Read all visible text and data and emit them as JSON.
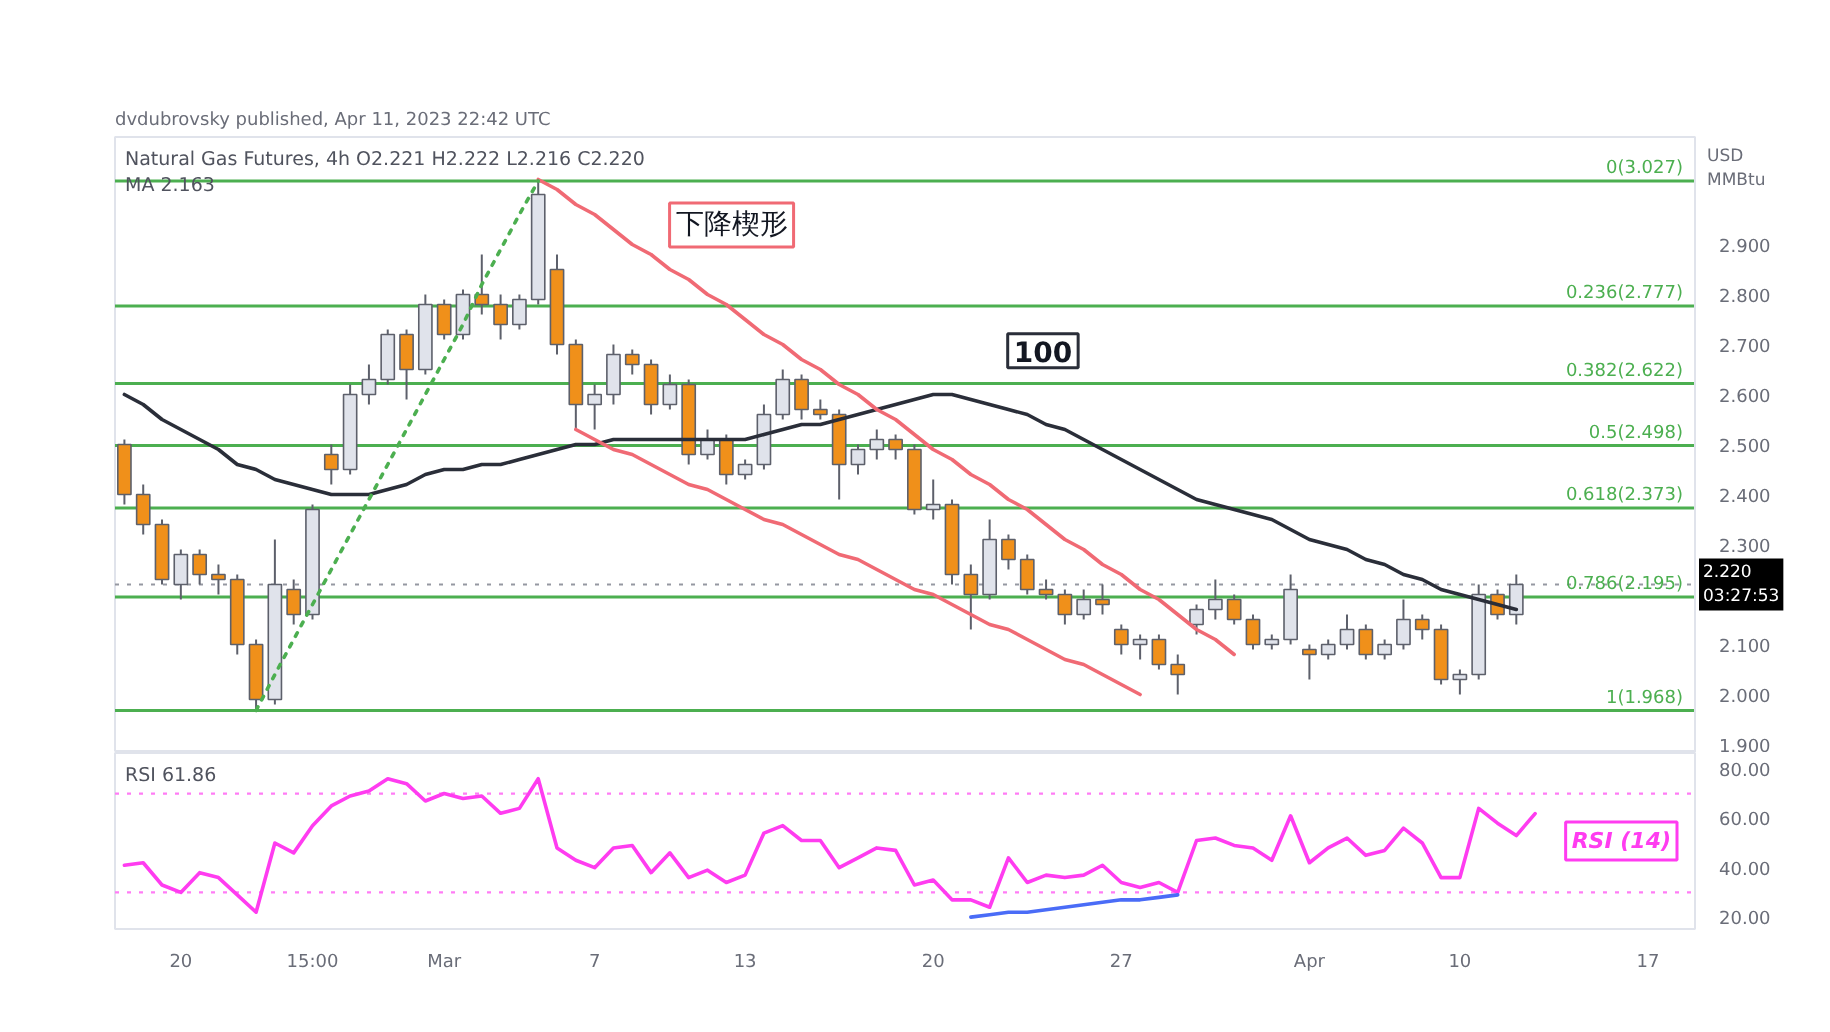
{
  "chart_data": [
    {
      "type": "candlestick",
      "title": "Natural Gas Futures, 4h O2.221 H2.222 L2.216 C2.220",
      "subtitle": "MA 2.163",
      "ylabel": "USD\nMMBtu",
      "annotations": [
        "dvdubrovsky published, Apr 11, 2023 22:42 UTC",
        "下降楔形",
        "100"
      ],
      "categories": [
        null,
        null,
        null,
        null,
        null,
        null,
        null,
        null,
        null,
        null,
        null,
        null,
        null,
        null,
        null,
        null,
        null,
        null,
        null,
        null,
        null,
        null,
        null,
        null,
        null,
        null,
        null,
        null,
        null,
        null,
        null,
        null,
        null,
        null,
        null,
        null,
        null,
        null,
        null,
        null,
        null,
        null,
        null,
        null,
        null,
        null,
        null,
        null,
        null,
        null,
        null,
        null,
        null,
        null,
        null,
        null,
        null,
        null,
        null,
        null,
        null,
        null,
        null,
        null,
        null,
        null,
        null,
        null,
        null,
        null,
        null,
        null,
        null,
        null,
        null,
        null,
        null,
        null,
        null,
        null,
        null,
        null,
        null,
        null
      ],
      "ohlc": [
        [
          2.5,
          2.51,
          2.38,
          2.4
        ],
        [
          2.4,
          2.42,
          2.32,
          2.34
        ],
        [
          2.34,
          2.35,
          2.22,
          2.23
        ],
        [
          2.22,
          2.29,
          2.19,
          2.28
        ],
        [
          2.28,
          2.29,
          2.22,
          2.24
        ],
        [
          2.24,
          2.26,
          2.2,
          2.23
        ],
        [
          2.23,
          2.24,
          2.08,
          2.1
        ],
        [
          2.1,
          2.11,
          1.968,
          1.99
        ],
        [
          1.99,
          2.31,
          1.98,
          2.22
        ],
        [
          2.21,
          2.23,
          2.14,
          2.16
        ],
        [
          2.16,
          2.38,
          2.15,
          2.37
        ],
        [
          2.48,
          2.5,
          2.42,
          2.45
        ],
        [
          2.45,
          2.62,
          2.44,
          2.6
        ],
        [
          2.6,
          2.66,
          2.58,
          2.63
        ],
        [
          2.63,
          2.73,
          2.62,
          2.72
        ],
        [
          2.72,
          2.73,
          2.59,
          2.65
        ],
        [
          2.65,
          2.8,
          2.64,
          2.78
        ],
        [
          2.78,
          2.79,
          2.71,
          2.72
        ],
        [
          2.72,
          2.81,
          2.71,
          2.8
        ],
        [
          2.8,
          2.88,
          2.76,
          2.78
        ],
        [
          2.78,
          2.8,
          2.71,
          2.74
        ],
        [
          2.74,
          2.8,
          2.73,
          2.79
        ],
        [
          2.79,
          3.027,
          2.78,
          3.0
        ],
        [
          2.85,
          2.88,
          2.68,
          2.7
        ],
        [
          2.7,
          2.71,
          2.53,
          2.58
        ],
        [
          2.58,
          2.62,
          2.53,
          2.6
        ],
        [
          2.6,
          2.7,
          2.58,
          2.68
        ],
        [
          2.68,
          2.69,
          2.64,
          2.66
        ],
        [
          2.66,
          2.67,
          2.56,
          2.58
        ],
        [
          2.58,
          2.64,
          2.57,
          2.62
        ],
        [
          2.62,
          2.63,
          2.46,
          2.48
        ],
        [
          2.48,
          2.53,
          2.47,
          2.51
        ],
        [
          2.51,
          2.52,
          2.42,
          2.44
        ],
        [
          2.44,
          2.47,
          2.43,
          2.46
        ],
        [
          2.46,
          2.58,
          2.45,
          2.56
        ],
        [
          2.56,
          2.65,
          2.55,
          2.63
        ],
        [
          2.63,
          2.64,
          2.55,
          2.57
        ],
        [
          2.57,
          2.59,
          2.55,
          2.56
        ],
        [
          2.56,
          2.57,
          2.39,
          2.46
        ],
        [
          2.46,
          2.5,
          2.44,
          2.49
        ],
        [
          2.49,
          2.53,
          2.47,
          2.51
        ],
        [
          2.51,
          2.52,
          2.47,
          2.49
        ],
        [
          2.49,
          2.5,
          2.36,
          2.37
        ],
        [
          2.37,
          2.43,
          2.35,
          2.38
        ],
        [
          2.38,
          2.39,
          2.22,
          2.24
        ],
        [
          2.24,
          2.26,
          2.13,
          2.2
        ],
        [
          2.2,
          2.35,
          2.19,
          2.31
        ],
        [
          2.31,
          2.32,
          2.25,
          2.27
        ],
        [
          2.27,
          2.28,
          2.2,
          2.21
        ],
        [
          2.21,
          2.23,
          2.19,
          2.2
        ],
        [
          2.2,
          2.21,
          2.14,
          2.16
        ],
        [
          2.16,
          2.21,
          2.15,
          2.19
        ],
        [
          2.19,
          2.22,
          2.16,
          2.18
        ],
        [
          2.13,
          2.14,
          2.08,
          2.1
        ],
        [
          2.1,
          2.12,
          2.07,
          2.11
        ],
        [
          2.11,
          2.12,
          2.05,
          2.06
        ],
        [
          2.06,
          2.08,
          2.0,
          2.04
        ],
        [
          2.14,
          2.18,
          2.12,
          2.17
        ],
        [
          2.17,
          2.23,
          2.15,
          2.19
        ],
        [
          2.19,
          2.2,
          2.14,
          2.15
        ],
        [
          2.15,
          2.16,
          2.09,
          2.1
        ],
        [
          2.1,
          2.12,
          2.09,
          2.11
        ],
        [
          2.11,
          2.24,
          2.1,
          2.21
        ],
        [
          2.09,
          2.1,
          2.03,
          2.08
        ],
        [
          2.08,
          2.11,
          2.07,
          2.1
        ],
        [
          2.1,
          2.16,
          2.09,
          2.13
        ],
        [
          2.13,
          2.14,
          2.07,
          2.08
        ],
        [
          2.08,
          2.11,
          2.07,
          2.1
        ],
        [
          2.1,
          2.19,
          2.09,
          2.15
        ],
        [
          2.15,
          2.16,
          2.11,
          2.13
        ],
        [
          2.13,
          2.14,
          2.02,
          2.03
        ],
        [
          2.03,
          2.05,
          2.0,
          2.04
        ],
        [
          2.04,
          2.22,
          2.03,
          2.2
        ],
        [
          2.2,
          2.21,
          2.15,
          2.16
        ],
        [
          2.16,
          2.24,
          2.14,
          2.22
        ],
        null,
        null,
        null,
        null,
        null,
        null,
        null,
        null,
        null
      ],
      "colors": [
        "#f0901a",
        "#f0901a",
        "#f0901a",
        "#e0e3eb",
        "#f0901a",
        "#f0901a",
        "#f0901a",
        "#f0901a",
        "#e0e3eb",
        "#f0901a",
        "#e0e3eb",
        "#f0901a",
        "#e0e3eb",
        "#e0e3eb",
        "#e0e3eb",
        "#f0901a",
        "#e0e3eb",
        "#f0901a",
        "#e0e3eb",
        "#f0901a",
        "#f0901a",
        "#e0e3eb",
        "#e0e3eb",
        "#f0901a",
        "#f0901a",
        "#e0e3eb",
        "#e0e3eb",
        "#f0901a",
        "#f0901a",
        "#e0e3eb",
        "#f0901a",
        "#e0e3eb",
        "#f0901a",
        "#e0e3eb",
        "#e0e3eb",
        "#e0e3eb",
        "#f0901a",
        "#f0901a",
        "#f0901a",
        "#e0e3eb",
        "#e0e3eb",
        "#f0901a",
        "#f0901a",
        "#e0e3eb",
        "#f0901a",
        "#f0901a",
        "#e0e3eb",
        "#f0901a",
        "#f0901a",
        "#f0901a",
        "#f0901a",
        "#e0e3eb",
        "#f0901a",
        "#f0901a",
        "#e0e3eb",
        "#f0901a",
        "#f0901a",
        "#e0e3eb",
        "#e0e3eb",
        "#f0901a",
        "#f0901a",
        "#e0e3eb",
        "#e0e3eb",
        "#f0901a",
        "#e0e3eb",
        "#e0e3eb",
        "#f0901a",
        "#e0e3eb",
        "#e0e3eb",
        "#f0901a",
        "#f0901a",
        "#e0e3eb",
        "#e0e3eb",
        "#f0901a",
        "#e0e3eb",
        null,
        null,
        null,
        null,
        null,
        null,
        null,
        null,
        null
      ],
      "series": [
        {
          "type": "line",
          "color": "#2a2e39",
          "values": [
            2.6,
            2.58,
            2.55,
            2.53,
            2.51,
            2.49,
            2.46,
            2.45,
            2.43,
            2.42,
            2.41,
            2.4,
            2.4,
            2.4,
            2.41,
            2.42,
            2.44,
            2.45,
            2.45,
            2.46,
            2.46,
            2.47,
            2.48,
            2.49,
            2.5,
            2.5,
            2.51,
            2.51,
            2.51,
            2.51,
            2.51,
            2.51,
            2.51,
            2.51,
            2.52,
            2.53,
            2.54,
            2.54,
            2.55,
            2.56,
            2.57,
            2.58,
            2.59,
            2.6,
            2.6,
            2.59,
            2.58,
            2.57,
            2.56,
            2.54,
            2.53,
            2.51,
            2.49,
            2.47,
            2.45,
            2.43,
            2.41,
            2.39,
            2.38,
            2.37,
            2.36,
            2.35,
            2.33,
            2.31,
            2.3,
            2.29,
            2.27,
            2.26,
            2.24,
            2.23,
            2.21,
            2.2,
            2.19,
            2.18,
            2.17,
            null,
            null,
            null,
            null,
            null,
            null,
            null,
            null,
            null
          ]
        },
        {
          "type": "line",
          "color": "#f06a74",
          "values": [
            null,
            null,
            null,
            null,
            null,
            null,
            null,
            null,
            null,
            null,
            null,
            null,
            null,
            null,
            null,
            null,
            null,
            null,
            null,
            null,
            null,
            null,
            3.03,
            3.01,
            2.98,
            2.96,
            2.93,
            2.9,
            2.88,
            2.85,
            2.83,
            2.8,
            2.78,
            2.75,
            2.72,
            2.7,
            2.67,
            2.65,
            2.62,
            2.6,
            2.57,
            2.55,
            2.52,
            2.49,
            2.47,
            2.44,
            2.42,
            2.39,
            2.37,
            2.34,
            2.31,
            2.29,
            2.26,
            2.24,
            2.21,
            2.19,
            2.16,
            2.13,
            2.11,
            2.08,
            null,
            null,
            null,
            null,
            null,
            null,
            null,
            null,
            null,
            null,
            null,
            null,
            null,
            null,
            null,
            null,
            null,
            null,
            null,
            null,
            null,
            null,
            null,
            null
          ]
        },
        {
          "type": "line",
          "color": "#f06a74",
          "values": [
            null,
            null,
            null,
            null,
            null,
            null,
            null,
            null,
            null,
            null,
            null,
            null,
            null,
            null,
            null,
            null,
            null,
            null,
            null,
            null,
            null,
            null,
            null,
            null,
            2.53,
            2.51,
            2.49,
            2.48,
            2.46,
            2.44,
            2.42,
            2.41,
            2.39,
            2.37,
            2.35,
            2.34,
            2.32,
            2.3,
            2.28,
            2.27,
            2.25,
            2.23,
            2.21,
            2.2,
            2.18,
            2.16,
            2.14,
            2.13,
            2.11,
            2.09,
            2.07,
            2.06,
            2.04,
            2.02,
            2.0,
            null,
            null,
            null,
            null,
            null,
            null,
            null,
            null,
            null,
            null,
            null,
            null,
            null,
            null,
            null,
            null,
            null,
            null,
            null,
            null,
            null,
            null,
            null,
            null,
            null,
            null,
            null,
            null,
            null
          ]
        },
        {
          "type": "line",
          "color": "#4caf50",
          "line_style": "dotted",
          "values": [
            null,
            null,
            null,
            null,
            null,
            null,
            null,
            1.968,
            2.04,
            2.11,
            2.18,
            2.25,
            2.32,
            2.39,
            2.46,
            2.53,
            2.6,
            2.67,
            2.74,
            2.82,
            2.89,
            2.96,
            3.027,
            null,
            null,
            null,
            null,
            null,
            null,
            null,
            null,
            null,
            null,
            null,
            null,
            null,
            null,
            null,
            null,
            null,
            null,
            null,
            null,
            null,
            null,
            null,
            null,
            null,
            null,
            null,
            null,
            null,
            null,
            null,
            null,
            null,
            null,
            null,
            null,
            null,
            null,
            null,
            null,
            null,
            null,
            null,
            null,
            null,
            null,
            null,
            null,
            null,
            null,
            null,
            null,
            null,
            null,
            null,
            null,
            null,
            null,
            null,
            null,
            null
          ]
        }
      ],
      "ylim": [
        1.883,
        3.115
      ],
      "yticks": [
        {
          "value": 1.9,
          "label": "1.900"
        },
        {
          "value": 2.0,
          "label": "2.000"
        },
        {
          "value": 2.1,
          "label": "2.100"
        },
        {
          "value": 2.3,
          "label": "2.300"
        },
        {
          "value": 2.4,
          "label": "2.400"
        },
        {
          "value": 2.5,
          "label": "2.500"
        },
        {
          "value": 2.6,
          "label": "2.600"
        },
        {
          "value": 2.7,
          "label": "2.700"
        },
        {
          "value": 2.8,
          "label": "2.800"
        },
        {
          "value": 2.9,
          "label": "2.900"
        }
      ],
      "ref_lines": [
        {
          "axis": "y",
          "value": 3.027,
          "label": "0(3.027)",
          "color": "#4caf50"
        },
        {
          "axis": "y",
          "value": 2.777,
          "label": "0.236(2.777)",
          "color": "#4caf50"
        },
        {
          "axis": "y",
          "value": 2.622,
          "label": "0.382(2.622)",
          "color": "#4caf50"
        },
        {
          "axis": "y",
          "value": 2.498,
          "label": "0.5(2.498)",
          "color": "#4caf50"
        },
        {
          "axis": "y",
          "value": 2.373,
          "label": "0.618(2.373)",
          "color": "#4caf50"
        },
        {
          "axis": "y",
          "value": 2.195,
          "label": "0.786(2.195)",
          "color": "#4caf50"
        },
        {
          "axis": "y",
          "value": 1.968,
          "label": "1(1.968)",
          "color": "#4caf50"
        },
        {
          "axis": "y",
          "value": 2.22,
          "label": "2.220\n03:27:53",
          "color": "#9598a1",
          "line_style": "dotted"
        }
      ],
      "tick_labels": "y"
    },
    {
      "type": "line",
      "title": "RSI 61.86",
      "categories": [
        null,
        null,
        null,
        "20",
        null,
        null,
        null,
        null,
        null,
        null,
        "15:00",
        null,
        null,
        null,
        null,
        null,
        null,
        "Mar",
        null,
        null,
        null,
        null,
        null,
        null,
        null,
        "7",
        null,
        null,
        null,
        null,
        null,
        null,
        null,
        "13",
        null,
        null,
        null,
        null,
        null,
        null,
        null,
        null,
        null,
        "20",
        null,
        null,
        null,
        null,
        null,
        null,
        null,
        null,
        null,
        "27",
        null,
        null,
        null,
        null,
        null,
        null,
        null,
        null,
        null,
        "Apr",
        null,
        null,
        null,
        null,
        null,
        null,
        null,
        "10",
        null,
        null,
        null,
        null,
        null,
        null,
        null,
        null,
        null,
        "17",
        null,
        null
      ],
      "series": [
        {
          "name": "RSI (14)",
          "color": "#ff3cf0",
          "values": [
            41,
            42,
            33,
            30,
            38,
            36,
            29,
            22,
            50,
            46,
            57,
            65,
            69,
            71,
            76,
            74,
            67,
            70,
            68,
            69,
            62,
            64,
            76,
            48,
            43,
            40,
            48,
            49,
            38,
            46,
            36,
            39,
            34,
            37,
            54,
            57,
            51,
            51,
            40,
            44,
            48,
            47,
            33,
            35,
            27,
            27,
            24,
            44,
            34,
            37,
            36,
            37,
            41,
            34,
            32,
            34,
            30,
            51,
            52,
            49,
            48,
            43,
            61,
            42,
            48,
            52,
            45,
            47,
            56,
            50,
            36,
            36,
            64,
            58,
            53,
            61.86,
            null,
            null,
            null,
            null,
            null,
            null,
            null,
            null
          ]
        },
        {
          "color": "#4a6cf7",
          "values": [
            null,
            null,
            null,
            null,
            null,
            null,
            null,
            null,
            null,
            null,
            null,
            null,
            null,
            null,
            null,
            null,
            null,
            null,
            null,
            null,
            null,
            null,
            null,
            null,
            null,
            null,
            null,
            null,
            null,
            null,
            null,
            null,
            null,
            null,
            null,
            null,
            null,
            null,
            null,
            null,
            null,
            null,
            null,
            null,
            null,
            20,
            21,
            22,
            22,
            23,
            24,
            25,
            26,
            27,
            27,
            28,
            29,
            null,
            null,
            null,
            null,
            null,
            null,
            null,
            null,
            null,
            null,
            null,
            null,
            null,
            null,
            null,
            null,
            null,
            null,
            null,
            null,
            null,
            null,
            null,
            null,
            null,
            null,
            null
          ]
        }
      ],
      "ylim": [
        15.2,
        86.4
      ],
      "yticks": [
        {
          "value": 20,
          "label": "20.00"
        },
        {
          "value": 40,
          "label": "40.00"
        },
        {
          "value": 60,
          "label": "60.00"
        },
        {
          "value": 80,
          "label": "80.00"
        }
      ],
      "ref_lines": [
        {
          "axis": "y",
          "value": 70,
          "color": "#ff7cf5",
          "line_style": "dotted"
        },
        {
          "axis": "y",
          "value": 30,
          "color": "#ff7cf5",
          "line_style": "dotted"
        }
      ]
    }
  ]
}
